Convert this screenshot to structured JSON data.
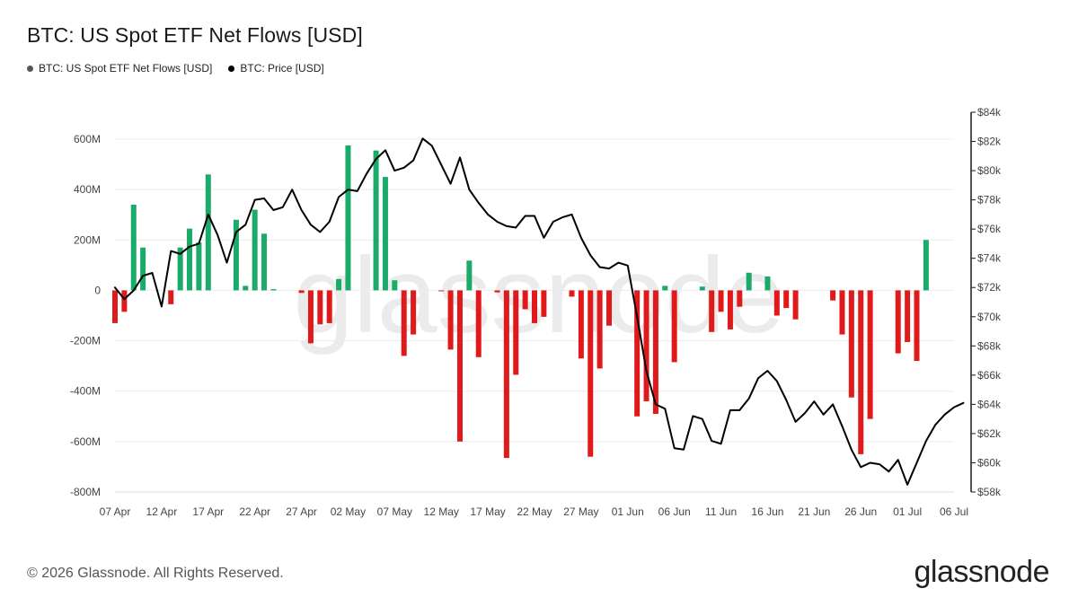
{
  "header": {
    "title": "BTC: US Spot ETF Net Flows [USD]"
  },
  "legend": [
    {
      "label": "BTC: US Spot ETF Net Flows [USD]",
      "color": "#555555"
    },
    {
      "label": "BTC: Price [USD]",
      "color": "#000000"
    }
  ],
  "footer": {
    "copyright": "© 2026 Glassnode. All Rights Reserved.",
    "brand": "glassnode"
  },
  "watermark": "glassnode",
  "colors": {
    "inflow": "#1aaa6a",
    "outflow": "#e01a1a",
    "price": "#000000"
  },
  "chart_data": {
    "type": "bar",
    "title": "BTC: US Spot ETF Net Flows [USD]",
    "x_range": [
      "2026-04-07",
      "2026-07-06"
    ],
    "x_ticks": [
      "07 Apr",
      "12 Apr",
      "17 Apr",
      "22 Apr",
      "27 Apr",
      "02 May",
      "07 May",
      "12 May",
      "17 May",
      "22 May",
      "27 May",
      "01 Jun",
      "06 Jun",
      "11 Jun",
      "16 Jun",
      "21 Jun",
      "26 Jun",
      "01 Jul",
      "06 Jul"
    ],
    "y_left": {
      "min": -800,
      "max": 600,
      "step": 200,
      "unit": "M",
      "tick_labels": [
        "600M",
        "400M",
        "200M",
        "0",
        "-200M",
        "-400M",
        "-600M",
        "-800M"
      ]
    },
    "y_right": {
      "min": 58,
      "max": 84,
      "step": 2,
      "unit": "k",
      "tick_labels": [
        "$84k",
        "$82k",
        "$80k",
        "$78k",
        "$76k",
        "$74k",
        "$72k",
        "$70k",
        "$68k",
        "$66k",
        "$64k",
        "$62k",
        "$60k",
        "$58k"
      ]
    },
    "series": [
      {
        "name": "BTC: US Spot ETF Net Flows [USD]",
        "type": "bar",
        "unit": "USD millions",
        "points": [
          [
            "2026-04-07",
            -130
          ],
          [
            "2026-04-08",
            -85
          ],
          [
            "2026-04-09",
            340
          ],
          [
            "2026-04-10",
            170
          ],
          [
            "2026-04-13",
            -55
          ],
          [
            "2026-04-14",
            170
          ],
          [
            "2026-04-15",
            245
          ],
          [
            "2026-04-16",
            190
          ],
          [
            "2026-04-17",
            460
          ],
          [
            "2026-04-20",
            280
          ],
          [
            "2026-04-21",
            18
          ],
          [
            "2026-04-22",
            320
          ],
          [
            "2026-04-23",
            225
          ],
          [
            "2026-04-24",
            5
          ],
          [
            "2026-04-27",
            -10
          ],
          [
            "2026-04-28",
            -210
          ],
          [
            "2026-04-29",
            -135
          ],
          [
            "2026-04-30",
            -130
          ],
          [
            "2026-05-01",
            45
          ],
          [
            "2026-05-02",
            575
          ],
          [
            "2026-05-05",
            555
          ],
          [
            "2026-05-06",
            450
          ],
          [
            "2026-05-07",
            40
          ],
          [
            "2026-05-08",
            -260
          ],
          [
            "2026-05-09",
            -175
          ],
          [
            "2026-05-12",
            -2
          ],
          [
            "2026-05-13",
            -235
          ],
          [
            "2026-05-14",
            -600
          ],
          [
            "2026-05-15",
            118
          ],
          [
            "2026-05-16",
            -265
          ],
          [
            "2026-05-18",
            -8
          ],
          [
            "2026-05-19",
            -665
          ],
          [
            "2026-05-20",
            -335
          ],
          [
            "2026-05-21",
            -75
          ],
          [
            "2026-05-22",
            -130
          ],
          [
            "2026-05-23",
            -105
          ],
          [
            "2026-05-26",
            -25
          ],
          [
            "2026-05-27",
            -270
          ],
          [
            "2026-05-28",
            -660
          ],
          [
            "2026-05-29",
            -310
          ],
          [
            "2026-05-30",
            -140
          ],
          [
            "2026-06-02",
            -500
          ],
          [
            "2026-06-03",
            -440
          ],
          [
            "2026-06-04",
            -490
          ],
          [
            "2026-06-05",
            18
          ],
          [
            "2026-06-06",
            -285
          ],
          [
            "2026-06-09",
            15
          ],
          [
            "2026-06-10",
            -165
          ],
          [
            "2026-06-11",
            -85
          ],
          [
            "2026-06-12",
            -155
          ],
          [
            "2026-06-13",
            -65
          ],
          [
            "2026-06-14",
            70
          ],
          [
            "2026-06-16",
            55
          ],
          [
            "2026-06-17",
            -100
          ],
          [
            "2026-06-18",
            -70
          ],
          [
            "2026-06-19",
            -115
          ],
          [
            "2026-06-23",
            -40
          ],
          [
            "2026-06-24",
            -175
          ],
          [
            "2026-06-25",
            -425
          ],
          [
            "2026-06-26",
            -650
          ],
          [
            "2026-06-27",
            -510
          ],
          [
            "2026-06-30",
            -250
          ],
          [
            "2026-07-01",
            -205
          ],
          [
            "2026-07-02",
            -280
          ],
          [
            "2026-07-03",
            200
          ]
        ]
      },
      {
        "name": "BTC: Price [USD]",
        "type": "line",
        "unit": "USD thousands",
        "points": [
          [
            "2026-04-07",
            72.0
          ],
          [
            "2026-04-08",
            71.2
          ],
          [
            "2026-04-09",
            71.8
          ],
          [
            "2026-04-10",
            72.8
          ],
          [
            "2026-04-11",
            73.0
          ],
          [
            "2026-04-12",
            70.7
          ],
          [
            "2026-04-13",
            74.5
          ],
          [
            "2026-04-14",
            74.3
          ],
          [
            "2026-04-15",
            74.8
          ],
          [
            "2026-04-16",
            75.0
          ],
          [
            "2026-04-17",
            77.0
          ],
          [
            "2026-04-18",
            75.6
          ],
          [
            "2026-04-19",
            73.7
          ],
          [
            "2026-04-20",
            75.8
          ],
          [
            "2026-04-21",
            76.3
          ],
          [
            "2026-04-22",
            78.0
          ],
          [
            "2026-04-23",
            78.1
          ],
          [
            "2026-04-24",
            77.3
          ],
          [
            "2026-04-25",
            77.5
          ],
          [
            "2026-04-26",
            78.7
          ],
          [
            "2026-04-27",
            77.3
          ],
          [
            "2026-04-28",
            76.3
          ],
          [
            "2026-04-29",
            75.8
          ],
          [
            "2026-04-30",
            76.5
          ],
          [
            "2026-05-01",
            78.2
          ],
          [
            "2026-05-02",
            78.7
          ],
          [
            "2026-05-03",
            78.6
          ],
          [
            "2026-05-04",
            79.8
          ],
          [
            "2026-05-05",
            80.8
          ],
          [
            "2026-05-06",
            81.4
          ],
          [
            "2026-05-07",
            80.0
          ],
          [
            "2026-05-08",
            80.2
          ],
          [
            "2026-05-09",
            80.7
          ],
          [
            "2026-05-10",
            82.2
          ],
          [
            "2026-05-11",
            81.7
          ],
          [
            "2026-05-12",
            80.4
          ],
          [
            "2026-05-13",
            79.1
          ],
          [
            "2026-05-14",
            80.9
          ],
          [
            "2026-05-15",
            78.7
          ],
          [
            "2026-05-16",
            77.8
          ],
          [
            "2026-05-17",
            77.0
          ],
          [
            "2026-05-18",
            76.5
          ],
          [
            "2026-05-19",
            76.2
          ],
          [
            "2026-05-20",
            76.1
          ],
          [
            "2026-05-21",
            76.9
          ],
          [
            "2026-05-22",
            76.9
          ],
          [
            "2026-05-23",
            75.4
          ],
          [
            "2026-05-24",
            76.5
          ],
          [
            "2026-05-25",
            76.8
          ],
          [
            "2026-05-26",
            77.0
          ],
          [
            "2026-05-27",
            75.4
          ],
          [
            "2026-05-28",
            74.2
          ],
          [
            "2026-05-29",
            73.4
          ],
          [
            "2026-05-30",
            73.3
          ],
          [
            "2026-05-31",
            73.7
          ],
          [
            "2026-06-01",
            73.5
          ],
          [
            "2026-06-02",
            70.0
          ],
          [
            "2026-06-03",
            66.3
          ],
          [
            "2026-06-04",
            64.0
          ],
          [
            "2026-06-05",
            63.7
          ],
          [
            "2026-06-06",
            61.0
          ],
          [
            "2026-06-07",
            60.9
          ],
          [
            "2026-06-08",
            63.2
          ],
          [
            "2026-06-09",
            63.0
          ],
          [
            "2026-06-10",
            61.5
          ],
          [
            "2026-06-11",
            61.3
          ],
          [
            "2026-06-12",
            63.6
          ],
          [
            "2026-06-13",
            63.6
          ],
          [
            "2026-06-14",
            64.4
          ],
          [
            "2026-06-15",
            65.8
          ],
          [
            "2026-06-16",
            66.3
          ],
          [
            "2026-06-17",
            65.6
          ],
          [
            "2026-06-18",
            64.3
          ],
          [
            "2026-06-19",
            62.8
          ],
          [
            "2026-06-20",
            63.4
          ],
          [
            "2026-06-21",
            64.2
          ],
          [
            "2026-06-22",
            63.3
          ],
          [
            "2026-06-23",
            64.0
          ],
          [
            "2026-06-24",
            62.5
          ],
          [
            "2026-06-25",
            60.9
          ],
          [
            "2026-06-26",
            59.7
          ],
          [
            "2026-06-27",
            60.0
          ],
          [
            "2026-06-28",
            59.9
          ],
          [
            "2026-06-29",
            59.4
          ],
          [
            "2026-06-30",
            60.2
          ],
          [
            "2026-07-01",
            58.5
          ],
          [
            "2026-07-02",
            60.0
          ],
          [
            "2026-07-03",
            61.5
          ],
          [
            "2026-07-04",
            62.6
          ],
          [
            "2026-07-05",
            63.3
          ],
          [
            "2026-07-06",
            63.8
          ],
          [
            "2026-07-07",
            64.1
          ]
        ]
      }
    ],
    "grid": "horizontal",
    "legend_position": "top-left"
  }
}
